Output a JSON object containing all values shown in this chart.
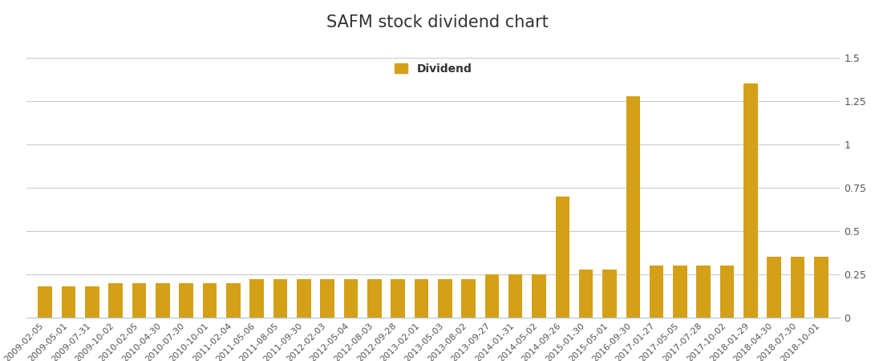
{
  "title": "SAFM stock dividend chart",
  "legend_label": "Dividend",
  "bar_color": "#D4A017",
  "background_color": "#ffffff",
  "ylim": [
    0,
    1.5
  ],
  "yticks": [
    0,
    0.25,
    0.5,
    0.75,
    1,
    1.25,
    1.5
  ],
  "ytick_labels": [
    "0",
    "0.25",
    "0.5",
    "0.75",
    "1",
    "1.25",
    "1.5"
  ],
  "categories": [
    "2009-02-05",
    "2009-05-01",
    "2009-07-31",
    "2009-10-02",
    "2010-02-05",
    "2010-04-30",
    "2010-07-30",
    "2010-10-01",
    "2011-02-04",
    "2011-05-06",
    "2011-08-05",
    "2011-09-30",
    "2012-02-03",
    "2012-05-04",
    "2012-08-03",
    "2012-09-28",
    "2013-02-01",
    "2013-05-03",
    "2013-08-02",
    "2013-09-27",
    "2014-01-31",
    "2014-05-02",
    "2014-09-26",
    "2015-01-30",
    "2015-05-01",
    "2016-09-30",
    "2017-01-27",
    "2017-05-05",
    "2017-07-28",
    "2017-10-02",
    "2018-01-29",
    "2018-04-30",
    "2018-07-30",
    "2018-10-01"
  ],
  "values": [
    0.18,
    0.18,
    0.18,
    0.2,
    0.2,
    0.2,
    0.2,
    0.2,
    0.2,
    0.22,
    0.22,
    0.22,
    0.22,
    0.22,
    0.22,
    0.22,
    0.22,
    0.22,
    0.22,
    0.25,
    0.25,
    0.25,
    0.7,
    0.28,
    0.28,
    1.28,
    0.3,
    0.3,
    0.3,
    0.3,
    1.35,
    0.35,
    0.35,
    0.35
  ],
  "title_fontsize": 15,
  "tick_fontsize": 8,
  "ytick_fontsize": 9
}
